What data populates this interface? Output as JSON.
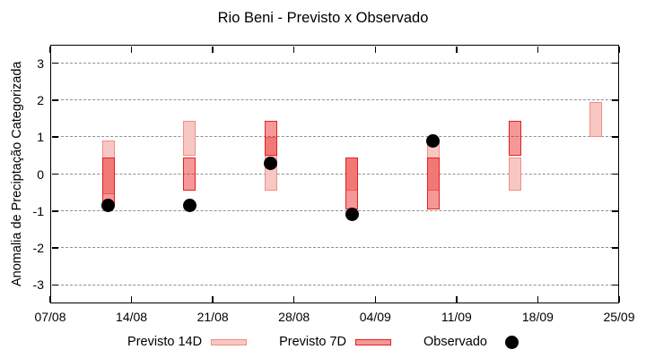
{
  "chart_data": {
    "type": "candlestick",
    "title": "Rio Beni - Previsto x Observado",
    "xlabel": "",
    "ylabel": "Anomalia de Preciptação Categorizada",
    "ylim": [
      -3.5,
      3.5
    ],
    "grid": true,
    "legend_position": "bottom-center",
    "y_ticks": [
      {
        "value": 3,
        "label": "3"
      },
      {
        "value": 2,
        "label": "2"
      },
      {
        "value": 1,
        "label": "1"
      },
      {
        "value": 0,
        "label": "0"
      },
      {
        "value": -1,
        "label": "-1"
      },
      {
        "value": -2,
        "label": "-2"
      },
      {
        "value": -3,
        "label": "-3"
      }
    ],
    "x_ticks": [
      {
        "label": "07/08",
        "day": 0
      },
      {
        "label": "14/08",
        "day": 7
      },
      {
        "label": "21/08",
        "day": 14
      },
      {
        "label": "28/08",
        "day": 21
      },
      {
        "label": "04/09",
        "day": 28
      },
      {
        "label": "11/09",
        "day": 35
      },
      {
        "label": "18/09",
        "day": 42
      },
      {
        "label": "25/09",
        "day": 49
      }
    ],
    "x_range_days": [
      0,
      49
    ],
    "groups": [
      {
        "date": "12/08",
        "day": 5,
        "previsto_14d": [
          -0.55,
          0.9
        ],
        "previsto_7d": [
          -0.85,
          0.45
        ],
        "observado": -0.85
      },
      {
        "date": "19/08",
        "day": 12,
        "previsto_14d": [
          0.5,
          1.45
        ],
        "previsto_7d": [
          -0.45,
          0.45
        ],
        "observado": -0.85
      },
      {
        "date": "26/08",
        "day": 19,
        "previsto_14d": [
          -0.45,
          1.0
        ],
        "previsto_7d": [
          0.5,
          1.45
        ],
        "observado": 0.3
      },
      {
        "date": "02/09",
        "day": 26,
        "previsto_14d": [
          -0.45,
          0.45
        ],
        "previsto_7d": [
          -0.95,
          0.45
        ],
        "observado": -1.1
      },
      {
        "date": "09/09",
        "day": 33,
        "previsto_14d": [
          -0.45,
          0.9
        ],
        "previsto_7d": [
          -0.95,
          0.45
        ],
        "observado": 0.9
      },
      {
        "date": "16/09",
        "day": 40,
        "previsto_14d": [
          -0.45,
          0.45
        ],
        "previsto_7d": [
          0.5,
          1.45
        ],
        "observado": null
      },
      {
        "date": "23/09",
        "day": 47,
        "previsto_14d": [
          1.0,
          1.95
        ],
        "previsto_7d": null,
        "observado": null
      }
    ],
    "legend": [
      {
        "label": "Previsto 14D",
        "marker": "box-14d"
      },
      {
        "label": "Previsto 7D",
        "marker": "box-7d"
      },
      {
        "label": "Observado",
        "marker": "dot"
      }
    ],
    "colors": {
      "previsto_14d_fill": "#F8C7C3",
      "previsto_14d_border": "#EE8F85",
      "previsto_7d_fill": "rgba(235,20,20,0.44)",
      "previsto_7d_border": "#E32020",
      "observado": "#000000",
      "grid": "#909090",
      "axis": "#000000",
      "background": "#ffffff"
    }
  }
}
